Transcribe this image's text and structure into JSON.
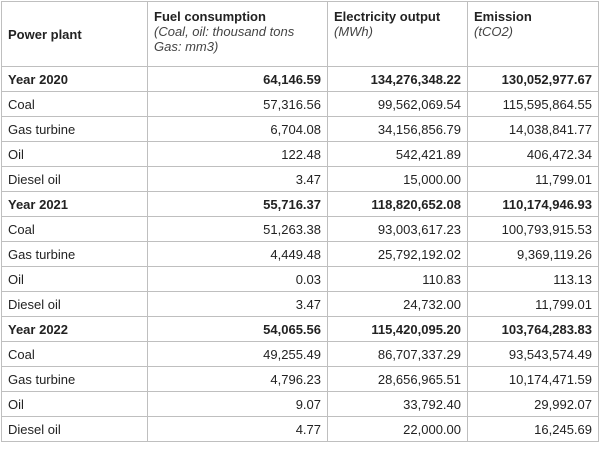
{
  "headers": {
    "plant": "Power plant",
    "fuel": "Fuel consumption",
    "fuel_unit_line1": "(Coal, oil: thousand tons",
    "fuel_unit_line2": "Gas: mm3)",
    "output": "Electricity output",
    "output_unit": "(MWh)",
    "emission": "Emission",
    "emission_unit": "(tCO2)"
  },
  "rows": [
    {
      "label": "Year 2020",
      "fuel": "64,146.59",
      "output": "134,276,348.22",
      "emission": "130,052,977.67",
      "total": true
    },
    {
      "label": "Coal",
      "fuel": "57,316.56",
      "output": "99,562,069.54",
      "emission": "115,595,864.55"
    },
    {
      "label": "Gas turbine",
      "fuel": "6,704.08",
      "output": "34,156,856.79",
      "emission": "14,038,841.77"
    },
    {
      "label": "Oil",
      "fuel": "122.48",
      "output": "542,421.89",
      "emission": "406,472.34"
    },
    {
      "label": "Diesel oil",
      "fuel": "3.47",
      "output": "15,000.00",
      "emission": "11,799.01"
    },
    {
      "label": "Year 2021",
      "fuel": "55,716.37",
      "output": "118,820,652.08",
      "emission": "110,174,946.93",
      "total": true
    },
    {
      "label": "Coal",
      "fuel": "51,263.38",
      "output": "93,003,617.23",
      "emission": "100,793,915.53"
    },
    {
      "label": "Gas turbine",
      "fuel": "4,449.48",
      "output": "25,792,192.02",
      "emission": "9,369,119.26"
    },
    {
      "label": "Oil",
      "fuel": "0.03",
      "output": "110.83",
      "emission": "113.13"
    },
    {
      "label": "Diesel oil",
      "fuel": "3.47",
      "output": "24,732.00",
      "emission": "11,799.01"
    },
    {
      "label": "Year 2022",
      "fuel": "54,065.56",
      "output": "115,420,095.20",
      "emission": "103,764,283.83",
      "total": true
    },
    {
      "label": "Coal",
      "fuel": "49,255.49",
      "output": "86,707,337.29",
      "emission": "93,543,574.49"
    },
    {
      "label": "Gas turbine",
      "fuel": "4,796.23",
      "output": "28,656,965.51",
      "emission": "10,174,471.59"
    },
    {
      "label": "Oil",
      "fuel": "9.07",
      "output": "33,792.40",
      "emission": "29,992.07"
    },
    {
      "label": "Diesel oil",
      "fuel": "4.77",
      "output": "22,000.00",
      "emission": "16,245.69"
    }
  ]
}
